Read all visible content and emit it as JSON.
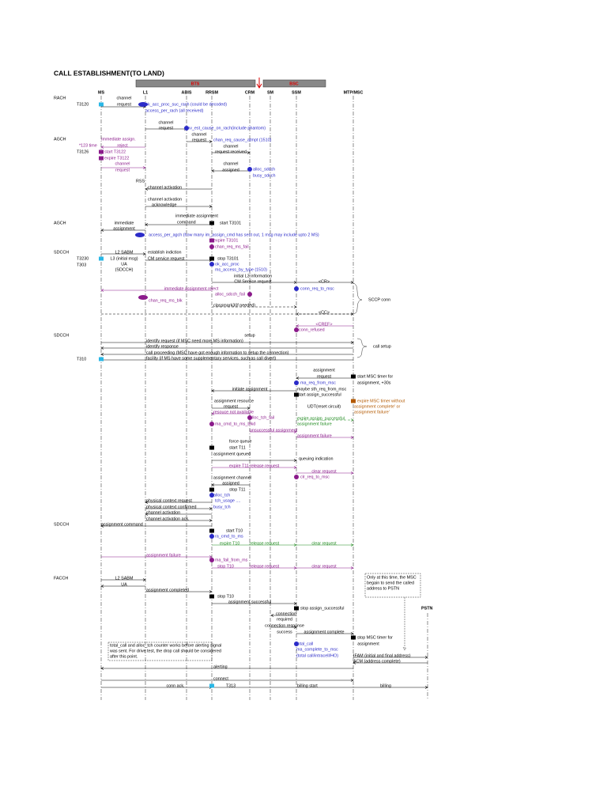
{
  "title": "CALL ESTABLISHMENT(TO LAND)",
  "groups": [
    "BTS",
    "BSC"
  ],
  "lifelines": [
    "MS",
    "L1",
    "ABIS",
    "RRSM",
    "CRM",
    "SM",
    "SSM",
    "MTP/MSC",
    "PSTN"
  ],
  "left_labels": [
    "RACH",
    "T3120",
    "AGCH",
    "*123 time",
    "T3126",
    "AGCH",
    "SDCCH",
    "T3230",
    "T303",
    "SDCCH",
    "T310",
    "SDCCH",
    "FACCH"
  ],
  "messages": [
    "channel",
    "request",
    "ok_acc_proc_suc_rach (could be decoded)",
    "access_per_rach (all received)",
    "channel",
    "request",
    "inv_est_cause_on_rach(include phantom)",
    "channel",
    "request",
    "immediate assign.",
    "reject",
    "chan_req_cause_atmpt (1510)",
    "channel",
    "request received",
    "start T3122",
    "expire T3122",
    "channel",
    "request",
    "channel",
    "assigned",
    "alloc_sdcch",
    "busy_sdcch",
    "RSS",
    "channel activation",
    "channel activation",
    "acknowledge",
    "immediate assignment",
    "command",
    "immediate",
    "assignment",
    "start T3101",
    "access_per_agch (how many im_assign_cmd has sent out, 1 msg may include upto 2 MS)",
    "expire T3101",
    "chan_req_ms_fail",
    "L2 SABM",
    "establish indiction",
    "L3 (initial msg)",
    "UA",
    "(SDCCH)",
    "CM service request",
    "stop T3101",
    "ok_acc_proc",
    "ms_access_by_type (1510)",
    "initial L3 information",
    "CM Service request",
    "<CR>",
    "conn_req_to_msc",
    "immediate assignment reject",
    "alloc_sdcch_fail",
    "chan_req_ms_blk",
    "classmark3(if needed)",
    "SCCP conn",
    "<CC>",
    "<CREF>",
    "conn_refused",
    "setup",
    "identify request (if MSC need more MS information)",
    "identify response",
    "call proceeding (MSC have got enough information to setup the connection)",
    "facility (if MS have some supplementary services, such as call divert)",
    "call setup",
    "assignment",
    "request",
    "start MSC timer for",
    "assignment, +30s",
    "ma_req_from_msc",
    "maybe sth_req_from_msc",
    "initiate assignment",
    "start assign_successful",
    "assignment resource",
    "request",
    "UDT(reset circuit)",
    "expire MSC timer without",
    "assignment complete' or",
    "assignment failure'",
    "resouce not available",
    "alloc_tch_fail",
    "expire assign_successful",
    "assignment failure",
    "ma_cmd_to_ms_blkd",
    "unsuccessful assignment",
    "assignment failure",
    "force queue",
    "start T11",
    "assignment queued",
    "queuing indication",
    "expire T11",
    "release request",
    "clear request",
    "clr_req_to_msc",
    "assignment channel",
    "assigned",
    "stop T11",
    "alloc_tch",
    "tch_usage ....",
    "busy_tch",
    "physical context request",
    "physical context confirmed",
    "channel activation",
    "channel activation ack.",
    "assignment command",
    "start T10",
    "ra_cmd_to_ms",
    "expire T10",
    "release request",
    "clear request",
    "assignment failure",
    "ma_fail_from_ms",
    "stop T10",
    "release request",
    "clear request",
    "L2 SABM",
    "UA",
    "assignment completed",
    "stop T10",
    "assignment successful",
    "stop assign_successful",
    "connection",
    "required",
    "connection response",
    "success",
    "assignment complete",
    "stop MSC timer for",
    "assignment",
    "total_call",
    "ma_complete_to_msc",
    "(total call/intracell/HO)",
    "IFAM (initial and final address)",
    "ACM (address complete)",
    "alerting",
    "connect",
    "conn ack.",
    "T313",
    "billing start",
    "billing"
  ],
  "notes": [
    [
      "Only at this time, the MSC",
      "begain to send the called",
      "address to PSTN"
    ],
    [
      "total_call and alloc_tch counter works before alerting signal",
      "was sent.  For drive test, the drop call should be considered",
      "after this point."
    ]
  ]
}
